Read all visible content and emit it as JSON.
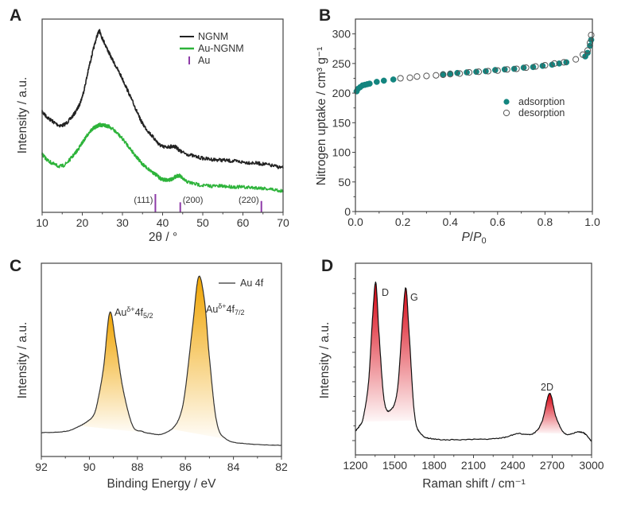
{
  "chart_data": [
    {
      "panel": "A",
      "type": "line",
      "xlabel": "2θ / °",
      "ylabel": "Intensity / a.u.",
      "xlim": [
        10,
        70
      ],
      "ylim": [
        0,
        100
      ],
      "xticks": [
        10,
        20,
        30,
        40,
        50,
        60,
        70
      ],
      "legend_placement": "top-right",
      "series": [
        {
          "name": "NGNM",
          "color": "#222222",
          "x": [
            10,
            12,
            15,
            18,
            20,
            22,
            24,
            25,
            27,
            30,
            33,
            35,
            38,
            40,
            43,
            45,
            50,
            55,
            60,
            65,
            70
          ],
          "y": [
            52,
            48,
            45,
            51,
            60,
            78,
            93,
            90,
            81,
            69,
            55,
            46,
            38,
            34,
            34,
            31,
            28,
            27,
            26,
            25,
            23
          ]
        },
        {
          "name": "Au-NGNM",
          "color": "#2db33a",
          "x": [
            10,
            12,
            15,
            18,
            20,
            22,
            24,
            25,
            27,
            30,
            33,
            35,
            38,
            40,
            42,
            44,
            46,
            50,
            55,
            60,
            65,
            70
          ],
          "y": [
            30,
            26,
            24,
            30,
            36,
            42,
            45,
            45,
            44,
            38,
            30,
            25,
            20,
            17,
            17,
            19,
            16,
            14,
            13.5,
            13,
            12.5,
            11
          ]
        }
      ],
      "reference": {
        "name": "Au",
        "color": "#8e3ba8",
        "peaks": [
          {
            "x": 38.2,
            "label": "(111)",
            "relative_intensity": 100
          },
          {
            "x": 44.4,
            "label": "(200)",
            "relative_intensity": 55
          },
          {
            "x": 64.6,
            "label": "(220)",
            "relative_intensity": 62
          }
        ]
      }
    },
    {
      "panel": "B",
      "type": "scatter",
      "xlabel_parts": [
        "P",
        "/",
        "P",
        "0"
      ],
      "ylabel": "Nitrogen uptake / cm³ g⁻¹",
      "xlim": [
        0,
        1
      ],
      "ylim": [
        0,
        325
      ],
      "xticks": [
        "0.0",
        "0.2",
        "0.4",
        "0.6",
        "0.8",
        "1.0"
      ],
      "yticks": [
        "0",
        "50",
        "100",
        "150",
        "200",
        "250",
        "300"
      ],
      "legend_placement": "center-right",
      "series": [
        {
          "name": "adsorption",
          "color": "#13857f",
          "marker": "filled-circle",
          "x": [
            0.005,
            0.01,
            0.02,
            0.03,
            0.04,
            0.05,
            0.06,
            0.09,
            0.12,
            0.16,
            0.37,
            0.4,
            0.43,
            0.47,
            0.51,
            0.55,
            0.59,
            0.63,
            0.67,
            0.71,
            0.75,
            0.79,
            0.83,
            0.86,
            0.89,
            0.97,
            0.98,
            0.99,
            0.995
          ],
          "y": [
            203,
            207,
            210,
            213,
            214,
            215,
            216,
            219,
            221,
            223,
            232,
            233,
            234,
            235,
            236,
            237,
            239,
            240,
            241,
            243,
            244,
            246,
            248,
            250,
            252,
            262,
            268,
            280,
            290
          ]
        },
        {
          "name": "desorption",
          "color": "#555555",
          "marker": "open-circle",
          "x": [
            0.995,
            0.99,
            0.98,
            0.96,
            0.93,
            0.88,
            0.84,
            0.8,
            0.76,
            0.72,
            0.68,
            0.64,
            0.6,
            0.56,
            0.52,
            0.48,
            0.44,
            0.4,
            0.37,
            0.34,
            0.3,
            0.26,
            0.23,
            0.19
          ],
          "y": [
            298,
            285,
            272,
            265,
            257,
            252,
            250,
            247,
            245,
            243,
            241,
            240,
            238,
            237,
            236,
            235,
            233,
            232,
            231,
            230,
            229,
            228,
            226,
            225
          ]
        }
      ]
    },
    {
      "panel": "C",
      "type": "line",
      "xlabel": "Binding Energy / eV",
      "ylabel": "Intensity / a.u.",
      "xlim": [
        92,
        82
      ],
      "ylim": [
        0,
        100
      ],
      "xticks": [
        92,
        90,
        88,
        86,
        84,
        82
      ],
      "legend_placement": "top-right",
      "fill_color": "#f0a400",
      "series": [
        {
          "name": "Au 4f",
          "color": "#333333",
          "x": [
            92,
            91,
            90.5,
            90.1,
            89.8,
            89.6,
            89.4,
            89.15,
            88.9,
            88.6,
            88.2,
            87.8,
            87.5,
            87,
            86.5,
            86.2,
            86,
            85.7,
            85.45,
            85.2,
            85,
            84.7,
            84.3,
            83.5,
            82
          ],
          "y": [
            12.3,
            13,
            15.2,
            18,
            22,
            32,
            47,
            74.5,
            59,
            35,
            16,
            13,
            12,
            11.5,
            15,
            22,
            35,
            67.5,
            93,
            80,
            51,
            18,
            9,
            6.6,
            5.8
          ]
        }
      ],
      "shaded_peaks": [
        [
          90.4,
          87.6
        ],
        [
          86.6,
          84.3
        ]
      ],
      "annotations": [
        {
          "x": 89.15,
          "parts": [
            "Au",
            "δ+",
            "4f",
            "5/2"
          ]
        },
        {
          "x": 85.45,
          "parts": [
            "Au",
            "δ+",
            "4f",
            "7/2"
          ]
        }
      ]
    },
    {
      "panel": "D",
      "type": "line",
      "xlabel": "Raman shift / cm⁻¹",
      "ylabel": "Intensity / a.u.",
      "xlim": [
        1200,
        3000
      ],
      "ylim": [
        0,
        100
      ],
      "xticks": [
        1200,
        1500,
        1800,
        2100,
        2400,
        2700,
        3000
      ],
      "fill_color": "#d8000f",
      "series": [
        {
          "color": "#111111",
          "x": [
            1200,
            1230,
            1260,
            1300,
            1330,
            1355,
            1380,
            1420,
            1470,
            1520,
            1560,
            1585,
            1610,
            1650,
            1700,
            1800,
            2000,
            2300,
            2430,
            2550,
            2620,
            2680,
            2730,
            2800,
            2900,
            2950,
            3000
          ],
          "y": [
            12.4,
            15,
            19.5,
            38,
            71,
            90,
            63,
            28,
            23.6,
            34,
            71,
            87,
            63,
            21.6,
            11,
            8.3,
            7.9,
            8.7,
            11,
            11,
            17,
            32,
            19.5,
            11,
            12,
            11,
            7
          ]
        }
      ],
      "shaded_peaks": [
        [
          1250,
          1660
        ],
        [
          2560,
          2800
        ]
      ],
      "annotations": [
        {
          "x": 1355,
          "label": "D"
        },
        {
          "x": 1585,
          "label": "G"
        },
        {
          "x": 2680,
          "label": "2D"
        }
      ]
    }
  ]
}
